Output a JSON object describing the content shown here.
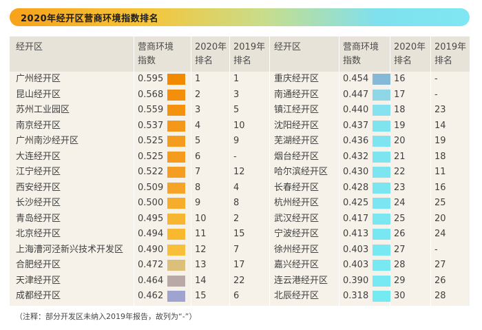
{
  "title": "2020年经开区营商环境指数排名",
  "headers": {
    "zone": "经开区",
    "index_line1": "营商环境",
    "index_line2": "指数",
    "rank2020_line1": "2020年",
    "rank2020_line2": "排名",
    "rank2019_line1": "2019年",
    "rank2019_line2": "排名"
  },
  "left_rows": [
    {
      "name": "广州经开区",
      "score": "0.595",
      "rank2020": "1",
      "rank2019": "1",
      "color": "#f28a00"
    },
    {
      "name": "昆山经开区",
      "score": "0.568",
      "rank2020": "2",
      "rank2019": "3",
      "color": "#f48f0c"
    },
    {
      "name": "苏州工业园区",
      "score": "0.559",
      "rank2020": "3",
      "rank2019": "5",
      "color": "#f4910f"
    },
    {
      "name": "南京经开区",
      "score": "0.537",
      "rank2020": "4",
      "rank2019": "10",
      "color": "#f59718"
    },
    {
      "name": "广州南沙经开区",
      "score": "0.525",
      "rank2020": "5",
      "rank2019": "9",
      "color": "#f59b1d"
    },
    {
      "name": "大连经开区",
      "score": "0.525",
      "rank2020": "6",
      "rank2019": "-",
      "color": "#f59b1d"
    },
    {
      "name": "江宁经开区",
      "score": "0.522",
      "rank2020": "7",
      "rank2019": "12",
      "color": "#f59d20"
    },
    {
      "name": "西安经开区",
      "score": "0.509",
      "rank2020": "8",
      "rank2019": "4",
      "color": "#f6a428"
    },
    {
      "name": "长沙经开区",
      "score": "0.500",
      "rank2020": "9",
      "rank2019": "8",
      "color": "#f7ad2c"
    },
    {
      "name": "青岛经开区",
      "score": "0.495",
      "rank2020": "10",
      "rank2019": "2",
      "color": "#f8b52f"
    },
    {
      "name": "北京经开区",
      "score": "0.494",
      "rank2020": "11",
      "rank2019": "15",
      "color": "#f8b830"
    },
    {
      "name": "上海漕河泾新兴技术开发区",
      "score": "0.490",
      "rank2020": "12",
      "rank2019": "7",
      "color": "#f8bf3a"
    },
    {
      "name": "合肥经开区",
      "score": "0.472",
      "rank2020": "13",
      "rank2019": "17",
      "color": "#dcbf7a"
    },
    {
      "name": "天津经开区",
      "score": "0.464",
      "rank2020": "14",
      "rank2019": "22",
      "color": "#b8a9a6"
    },
    {
      "name": "成都经开区",
      "score": "0.462",
      "rank2020": "15",
      "rank2019": "6",
      "color": "#9ea4cf"
    }
  ],
  "right_rows": [
    {
      "name": "重庆经开区",
      "score": "0.454",
      "rank2020": "16",
      "rank2019": "-",
      "color": "#86b8d8"
    },
    {
      "name": "南通经开区",
      "score": "0.447",
      "rank2020": "17",
      "rank2019": "-",
      "color": "#8fd6e6"
    },
    {
      "name": "镇江经开区",
      "score": "0.440",
      "rank2020": "18",
      "rank2019": "23",
      "color": "#85e2ee"
    },
    {
      "name": "沈阳经开区",
      "score": "0.437",
      "rank2020": "19",
      "rank2019": "14",
      "color": "#80e4ef"
    },
    {
      "name": "芜湖经开区",
      "score": "0.436",
      "rank2020": "20",
      "rank2019": "19",
      "color": "#7fe4ef"
    },
    {
      "name": "烟台经开区",
      "score": "0.432",
      "rank2020": "21",
      "rank2019": "18",
      "color": "#7de5f0"
    },
    {
      "name": "哈尔滨经开区",
      "score": "0.430",
      "rank2020": "22",
      "rank2019": "11",
      "color": "#7de5f0"
    },
    {
      "name": "长春经开区",
      "score": "0.428",
      "rank2020": "23",
      "rank2019": "16",
      "color": "#7ce6f0"
    },
    {
      "name": "杭州经开区",
      "score": "0.425",
      "rank2020": "24",
      "rank2019": "25",
      "color": "#7be6f1"
    },
    {
      "name": "武汉经开区",
      "score": "0.417",
      "rank2020": "25",
      "rank2019": "20",
      "color": "#7ae7f1"
    },
    {
      "name": "宁波经开区",
      "score": "0.413",
      "rank2020": "26",
      "rank2019": "24",
      "color": "#79e7f2"
    },
    {
      "name": "徐州经开区",
      "score": "0.403",
      "rank2020": "27",
      "rank2019": "-",
      "color": "#78e8f2"
    },
    {
      "name": "嘉兴经开区",
      "score": "0.403",
      "rank2020": "28",
      "rank2019": "27",
      "color": "#78e8f2"
    },
    {
      "name": "连云港经开区",
      "score": "0.390",
      "rank2020": "29",
      "rank2019": "26",
      "color": "#76e9f3"
    },
    {
      "name": "北辰经开区",
      "score": "0.318",
      "rank2020": "30",
      "rank2019": "28",
      "color": "#74eaf3"
    }
  ],
  "note": "（注释：部分开发区未纳入2019年报告，故列为“-”）"
}
